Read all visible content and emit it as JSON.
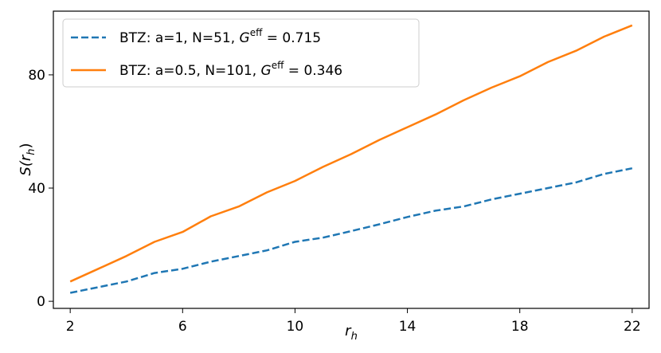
{
  "chart_data": {
    "type": "line",
    "title": "",
    "xlabel": "r",
    "xlabel_sub": "h",
    "ylabel": "S(r",
    "ylabel_sub": "h",
    "ylabel_close": ")",
    "xlim": [
      1.4,
      22.6
    ],
    "ylim": [
      -2.5,
      102.5
    ],
    "xticks": [
      2,
      6,
      10,
      14,
      18,
      22
    ],
    "yticks": [
      0,
      40,
      80
    ],
    "grid": false,
    "legend_position": "top-left",
    "series": [
      {
        "name_prefix": "BTZ: a=1, N=51, ",
        "name_symbol": "G",
        "name_sup": "eff",
        "name_suffix": " = 0.715",
        "color": "#1f77b4",
        "style": "dashed",
        "x": [
          2,
          3,
          4,
          5,
          6,
          7,
          8,
          9,
          10,
          11,
          12,
          13,
          14,
          15,
          16,
          17,
          18,
          19,
          20,
          21,
          22
        ],
        "y": [
          3,
          5,
          7,
          10,
          11.5,
          14,
          16,
          18,
          21,
          22.5,
          24.8,
          27.2,
          29.8,
          32,
          33.5,
          36,
          38,
          40,
          42,
          45,
          47
        ]
      },
      {
        "name_prefix": "BTZ: a=0.5, N=101, ",
        "name_symbol": "G",
        "name_sup": "eff",
        "name_suffix": " = 0.346",
        "color": "#ff7f0e",
        "style": "solid",
        "x": [
          2,
          3,
          4,
          5,
          6,
          7,
          8,
          9,
          10,
          11,
          12,
          13,
          14,
          15,
          16,
          17,
          18,
          19,
          20,
          21,
          22
        ],
        "y": [
          7,
          11.5,
          16,
          21,
          24.5,
          30,
          33.5,
          38.5,
          42.5,
          47.5,
          52,
          57,
          61.5,
          66,
          71,
          75.5,
          79.5,
          84.5,
          88.5,
          93.5,
          97.5
        ]
      }
    ]
  }
}
